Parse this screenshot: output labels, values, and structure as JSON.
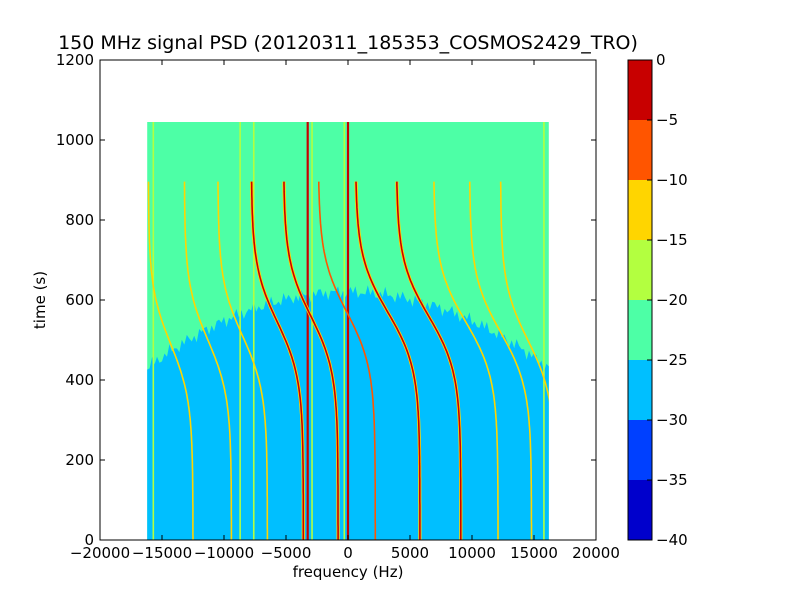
{
  "chart_data": {
    "type": "heatmap",
    "title": "150 MHz signal PSD (20120311_185353_COSMOS2429_TRO)",
    "xlabel": "frequency (Hz)",
    "ylabel": "time (s)",
    "xlim": [
      -20000,
      20000
    ],
    "ylim": [
      0,
      1200
    ],
    "xticks": [
      -20000,
      -15000,
      -10000,
      -5000,
      0,
      5000,
      10000,
      15000,
      20000
    ],
    "xtick_labels": [
      "−20000",
      "−15000",
      "−10000",
      "−5000",
      "0",
      "5000",
      "10000",
      "15000",
      "20000"
    ],
    "yticks": [
      0,
      200,
      400,
      600,
      800,
      1000,
      1200
    ],
    "ytick_labels": [
      "0",
      "200",
      "400",
      "600",
      "800",
      "1000",
      "1200"
    ],
    "data_extent": {
      "freq_hz": [
        -16200,
        16200
      ],
      "time_s": [
        0,
        1045
      ]
    },
    "background_level": -28,
    "upper_level": -23,
    "noise_boundary_time_s": {
      "edge": 430,
      "center": 620
    },
    "colorbar": {
      "levels": [
        -40,
        -35,
        -30,
        -25,
        -20,
        -15,
        -10,
        -5,
        0
      ],
      "tick_labels": [
        "−40",
        "−35",
        "−30",
        "−25",
        "−20",
        "−15",
        "−10",
        "−5",
        "0"
      ],
      "colors": [
        "#0000cc",
        "#0040ff",
        "#00bfff",
        "#4dffa6",
        "#b3ff40",
        "#ffd500",
        "#ff5500",
        "#c80000"
      ]
    },
    "vertical_lines": [
      {
        "freq": -15700,
        "level": -18
      },
      {
        "freq": -8700,
        "level": -18
      },
      {
        "freq": -7600,
        "level": -20
      },
      {
        "freq": -3250,
        "level": -4
      },
      {
        "freq": -2900,
        "level": -16
      },
      {
        "freq": -300,
        "level": -16
      },
      {
        "freq": 0,
        "level": -4
      },
      {
        "freq": 15800,
        "level": -18
      }
    ],
    "doppler_tracks": [
      {
        "f0": -14300,
        "a": 1800,
        "t0": 490,
        "tau": 140,
        "level": -15
      },
      {
        "f0": -11300,
        "a": 1900,
        "t0": 500,
        "tau": 140,
        "level": -15
      },
      {
        "f0": -8500,
        "a": 2000,
        "t0": 510,
        "tau": 140,
        "level": -12
      },
      {
        "f0": -5700,
        "a": 2100,
        "t0": 545,
        "tau": 140,
        "level": -4
      },
      {
        "f0": -3000,
        "a": 2200,
        "t0": 560,
        "tau": 140,
        "level": -4
      },
      {
        "f0": -100,
        "a": 2300,
        "t0": 570,
        "tau": 140,
        "level": -10
      },
      {
        "f0": 3200,
        "a": 2600,
        "t0": 570,
        "tau": 140,
        "level": -4
      },
      {
        "f0": 6500,
        "a": 2600,
        "t0": 560,
        "tau": 140,
        "level": -4
      },
      {
        "f0": 9500,
        "a": 2600,
        "t0": 545,
        "tau": 140,
        "level": -12
      },
      {
        "f0": 12300,
        "a": 2500,
        "t0": 520,
        "tau": 140,
        "level": -15
      },
      {
        "f0": 14500,
        "a": 2200,
        "t0": 500,
        "tau": 140,
        "level": -15
      }
    ]
  }
}
